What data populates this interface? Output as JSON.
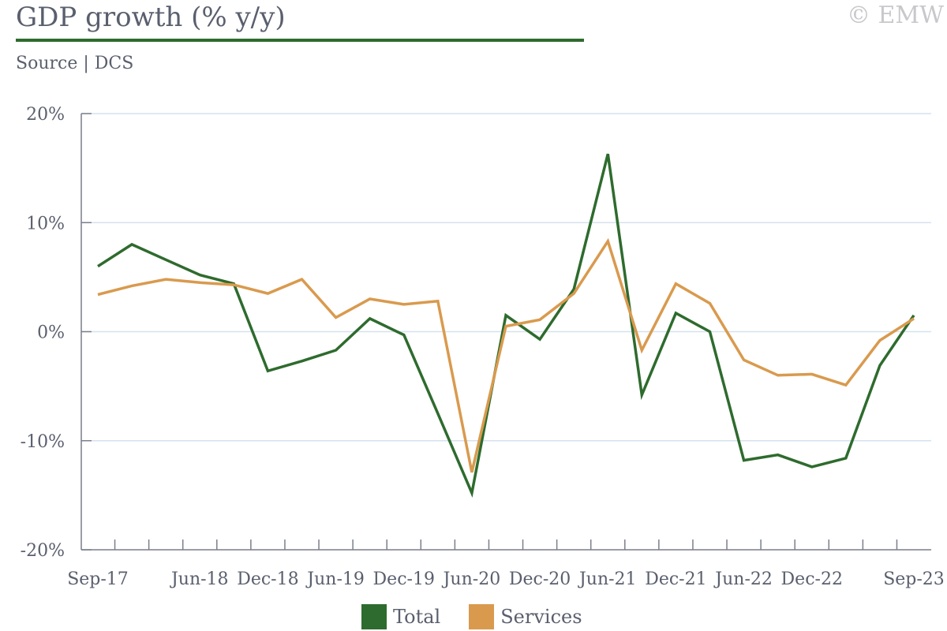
{
  "header": {
    "title": "GDP growth (% y/y)",
    "source": "Source | DCS",
    "copyright": "© EMW"
  },
  "chart_data": {
    "type": "line",
    "title": "GDP growth (% y/y)",
    "subtitle": "Source | DCS",
    "xlabel": "",
    "ylabel": "",
    "ylim": [
      -20,
      20
    ],
    "yticks": [
      20,
      10,
      0,
      -10,
      -20
    ],
    "ytick_labels": [
      "20%",
      "10%",
      "0%",
      "-10%",
      "-20%"
    ],
    "grid": true,
    "legend_position": "bottom",
    "colors": {
      "Total": "#2e6b2e",
      "Services": "#d99a4e"
    },
    "x_labels": [
      "Sep-17",
      "Jun-18",
      "Dec-18",
      "Jun-19",
      "Dec-19",
      "Jun-20",
      "Dec-20",
      "Jun-21",
      "Dec-21",
      "Jun-22",
      "Dec-22",
      "Sep-23"
    ],
    "x": [
      "Sep-17",
      "Dec-17",
      "Mar-18",
      "Jun-18",
      "Sep-18",
      "Dec-18",
      "Mar-19",
      "Jun-19",
      "Sep-19",
      "Dec-19",
      "Mar-20",
      "Jun-20",
      "Sep-20",
      "Dec-20",
      "Mar-21",
      "Jun-21",
      "Sep-21",
      "Dec-21",
      "Mar-22",
      "Jun-22",
      "Sep-22",
      "Dec-22",
      "Mar-23",
      "Jun-23",
      "Sep-23"
    ],
    "series": [
      {
        "name": "Total",
        "values": [
          6.0,
          8.0,
          6.6,
          5.2,
          4.4,
          -3.6,
          -2.7,
          -1.7,
          1.2,
          -0.3,
          -7.5,
          -14.8,
          1.5,
          -0.7,
          3.9,
          16.3,
          -5.8,
          1.7,
          0.0,
          -11.8,
          -11.3,
          -12.4,
          -11.6,
          -3.1,
          1.5
        ]
      },
      {
        "name": "Services",
        "values": [
          3.4,
          4.2,
          4.8,
          4.5,
          4.3,
          3.5,
          4.8,
          1.3,
          3.0,
          2.5,
          2.8,
          -12.9,
          0.5,
          1.1,
          3.5,
          8.3,
          -1.7,
          4.4,
          2.6,
          -2.6,
          -4.0,
          -3.9,
          -4.9,
          -0.8,
          1.2
        ]
      }
    ]
  }
}
